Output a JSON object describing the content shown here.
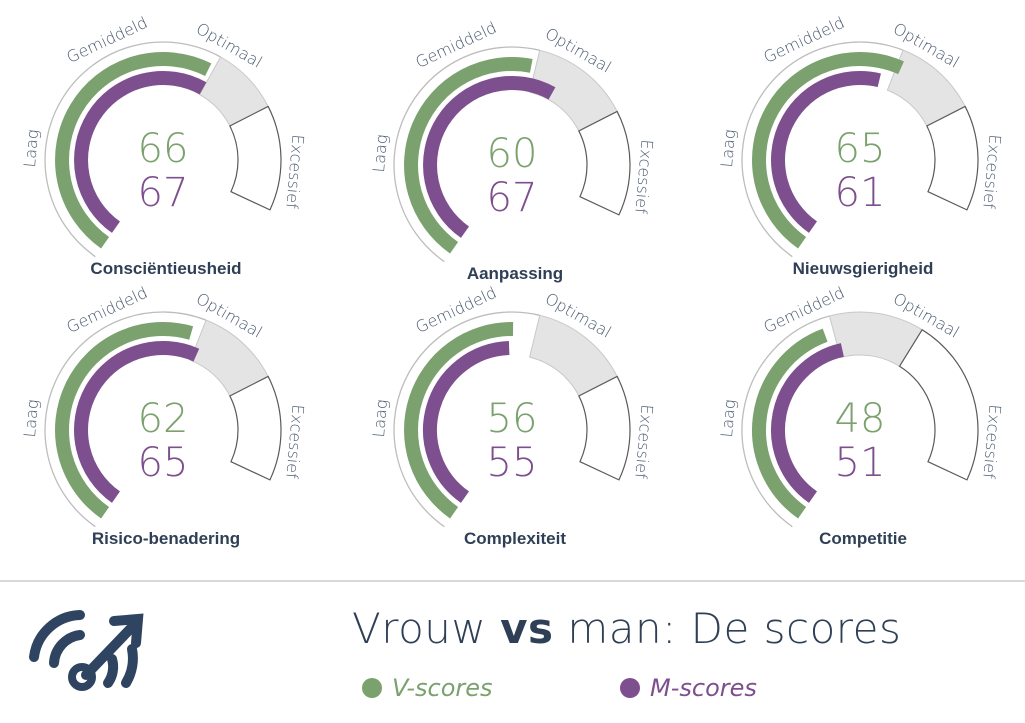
{
  "chart_data": {
    "type": "gauge",
    "zones": [
      "Laag",
      "Gemiddeld",
      "Optimaal",
      "Excessief"
    ],
    "series": [
      {
        "name": "V-scores",
        "color": "#7ba16e"
      },
      {
        "name": "M-scores",
        "color": "#7e4f8e"
      }
    ],
    "gauges": [
      {
        "label": "Consciëntieusheid",
        "v": 66,
        "m": 67,
        "optimal": [
          67,
          80
        ]
      },
      {
        "label": "Aanpassing",
        "v": 60,
        "m": 67,
        "optimal": [
          61,
          80
        ]
      },
      {
        "label": "Nieuwsgierigheid",
        "v": 65,
        "m": 61,
        "optimal": [
          64,
          80
        ]
      },
      {
        "label": "Risico-benadering",
        "v": 62,
        "m": 65,
        "optimal": [
          64,
          80
        ]
      },
      {
        "label": "Complexiteit",
        "v": 56,
        "m": 55,
        "optimal": [
          61,
          80
        ]
      },
      {
        "label": "Competitie",
        "v": 48,
        "m": 51,
        "optimal": [
          50,
          68
        ]
      }
    ]
  },
  "footer": {
    "title_pre": "Vrouw ",
    "title_bold": "vs",
    "title_post": " man: De scores",
    "legend_v": "V-scores",
    "legend_m": "M-scores"
  },
  "colors": {
    "v": "#7ba16e",
    "m": "#7e4f8e",
    "optimal_zone": "#e4e4e4",
    "title": "#2f3f55",
    "logo": "#2f4460"
  },
  "icons": {
    "logo": "speedometer-arrow-icon"
  }
}
